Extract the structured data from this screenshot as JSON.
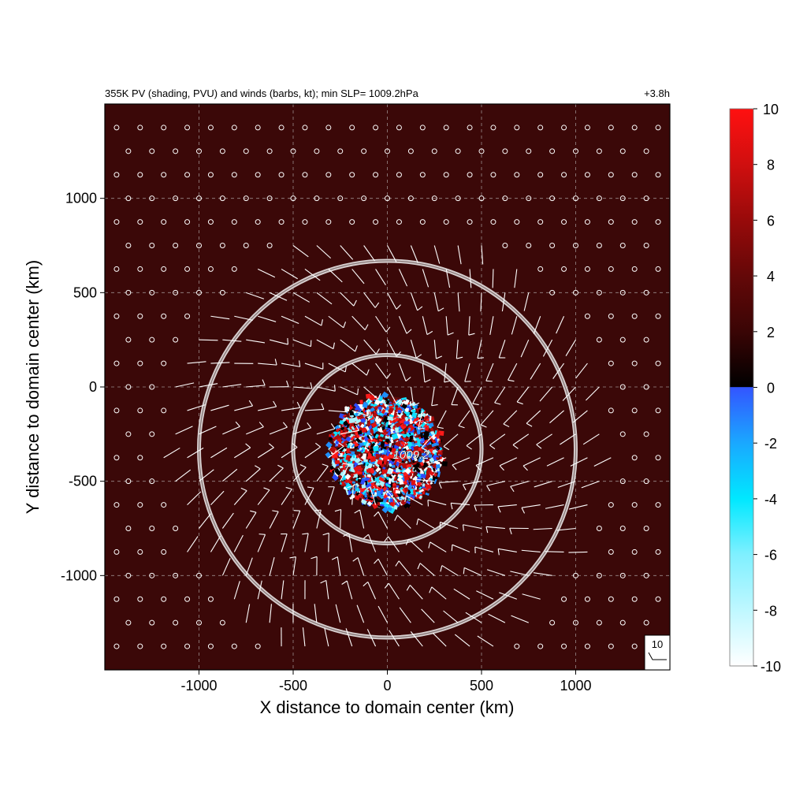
{
  "chart_data": {
    "type": "heatmap",
    "title_left": "355K PV (shading, PVU) and winds (barbs, kt); min SLP= 1009.2hPa",
    "title_right": "+3.8h",
    "xlabel": "X distance to domain center (km)",
    "ylabel": "Y distance to domain center (km)",
    "xlim": [
      -1500,
      1500
    ],
    "ylim": [
      -1500,
      1500
    ],
    "xticks": [
      -1000,
      -500,
      0,
      500,
      1000
    ],
    "yticks": [
      -1000,
      -500,
      0,
      500,
      1000
    ],
    "x_tick_labels": [
      "-1000",
      "-500",
      "0",
      "500",
      "1000"
    ],
    "y_tick_labels": [
      "-1000",
      "-500",
      "0",
      "500",
      "1000"
    ],
    "grid": true,
    "background_pv": 2.5,
    "colorbar": {
      "range": [
        -10,
        10
      ],
      "ticks": [
        10,
        8,
        6,
        4,
        2,
        0,
        -2,
        -4,
        -6,
        -8,
        -10
      ],
      "tick_labels": [
        "10",
        "8",
        "6",
        "4",
        "2",
        "0",
        "-2",
        "-4",
        "-6",
        "-8",
        "-10"
      ],
      "colors": [
        "#ffffff",
        "#7ff0ff",
        "#00e8ff",
        "#1aa8ff",
        "#3355ff",
        "#000000",
        "#3a0505",
        "#640808",
        "#980a0a",
        "#d00f0f",
        "#ff1010"
      ]
    },
    "pv_blob": {
      "x_center": 0,
      "y_center": -340,
      "radius": 300
    },
    "rings": [
      {
        "x_center": 0,
        "y_center": -330,
        "radius": 500
      },
      {
        "x_center": 0,
        "y_center": -330,
        "radius": 1000
      }
    ],
    "min_slp_label": {
      "text": "1009.2",
      "x": 0,
      "y": -360
    },
    "reference_vector": {
      "label": "10",
      "speed_kt": 10
    },
    "barb_spacing_km": 125,
    "wind_field": {
      "x_center": 0,
      "y_center": -330,
      "calm_radius": 1200,
      "max_speed_kt": 15
    }
  }
}
